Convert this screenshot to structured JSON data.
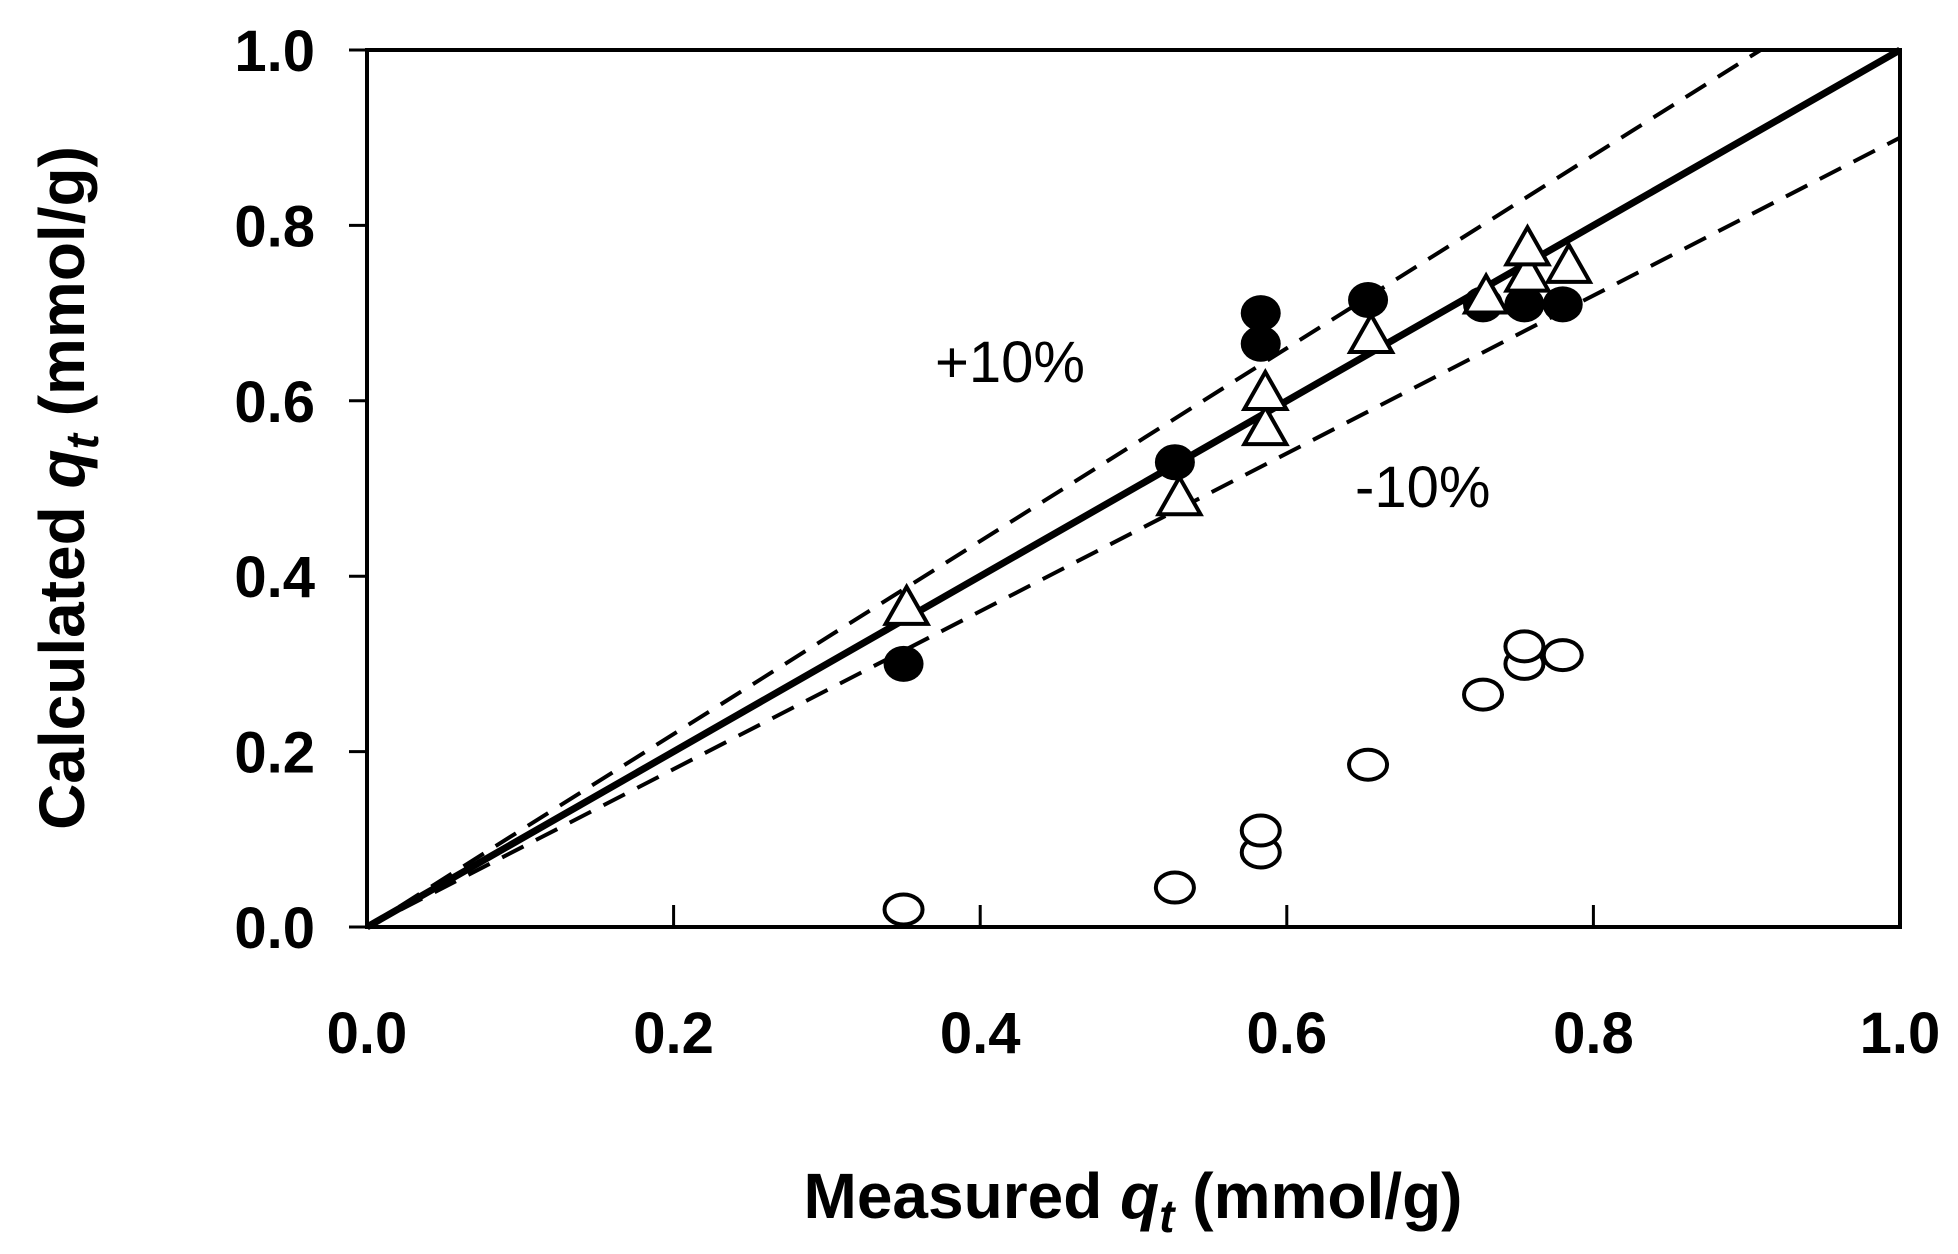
{
  "chart_data": {
    "type": "scatter",
    "title": "",
    "xlabel": {
      "prefix": "Measured ",
      "symbol": "q",
      "subscript": "t",
      "suffix": " (mmol/g)"
    },
    "ylabel": {
      "prefix": "Calculated ",
      "symbol": "q",
      "subscript": "t",
      "suffix": " (mmol/g)"
    },
    "xlim": [
      0,
      1
    ],
    "ylim": [
      0,
      1
    ],
    "xticks": [
      0,
      0.2,
      0.4,
      0.6,
      0.8,
      1.0
    ],
    "yticks": [
      0,
      0.2,
      0.4,
      0.6,
      0.8,
      1.0
    ],
    "xtick_labels": [
      "0.0",
      "0.2",
      "0.4",
      "0.6",
      "0.8",
      "1.0"
    ],
    "ytick_labels": [
      "0.0",
      "0.2",
      "0.4",
      "0.6",
      "0.8",
      "1.0"
    ],
    "grid": false,
    "reference_lines": [
      {
        "name": "parity",
        "slope": 1.0,
        "style": "solid"
      },
      {
        "name": "plus-10",
        "slope": 1.1,
        "style": "dashed",
        "label": "+10%"
      },
      {
        "name": "minus-10",
        "slope": 0.9,
        "style": "dashed",
        "label": "-10%"
      }
    ],
    "series": [
      {
        "name": "filled-circles",
        "marker": "filled-circle",
        "points": [
          {
            "x": 0.35,
            "y": 0.3
          },
          {
            "x": 0.527,
            "y": 0.53
          },
          {
            "x": 0.583,
            "y": 0.7
          },
          {
            "x": 0.583,
            "y": 0.665
          },
          {
            "x": 0.653,
            "y": 0.715
          },
          {
            "x": 0.728,
            "y": 0.71
          },
          {
            "x": 0.755,
            "y": 0.71
          },
          {
            "x": 0.78,
            "y": 0.71
          }
        ]
      },
      {
        "name": "open-triangles",
        "marker": "open-triangle",
        "points": [
          {
            "x": 0.352,
            "y": 0.365
          },
          {
            "x": 0.53,
            "y": 0.49
          },
          {
            "x": 0.586,
            "y": 0.57
          },
          {
            "x": 0.586,
            "y": 0.61
          },
          {
            "x": 0.655,
            "y": 0.675
          },
          {
            "x": 0.73,
            "y": 0.72
          },
          {
            "x": 0.757,
            "y": 0.745
          },
          {
            "x": 0.757,
            "y": 0.775
          },
          {
            "x": 0.784,
            "y": 0.755
          }
        ]
      },
      {
        "name": "open-circles",
        "marker": "open-circle",
        "points": [
          {
            "x": 0.35,
            "y": 0.02
          },
          {
            "x": 0.527,
            "y": 0.045
          },
          {
            "x": 0.583,
            "y": 0.085
          },
          {
            "x": 0.583,
            "y": 0.11
          },
          {
            "x": 0.653,
            "y": 0.185
          },
          {
            "x": 0.728,
            "y": 0.265
          },
          {
            "x": 0.755,
            "y": 0.3
          },
          {
            "x": 0.755,
            "y": 0.32
          },
          {
            "x": 0.78,
            "y": 0.31
          }
        ]
      }
    ]
  }
}
